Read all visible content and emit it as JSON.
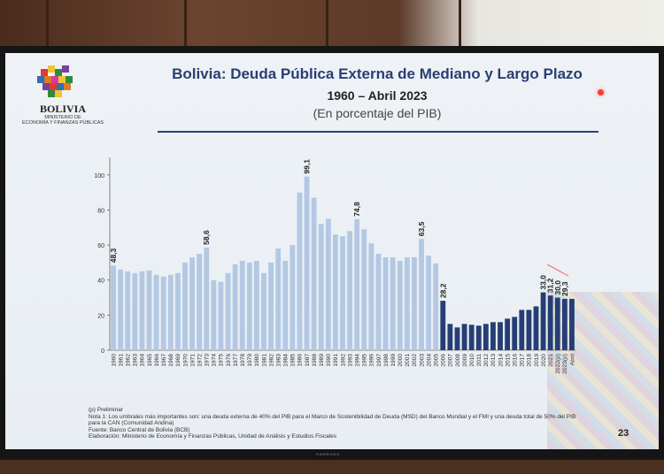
{
  "header": {
    "title": "Bolivia: Deuda Pública Externa de Mediano y Largo Plazo",
    "period": "1960 – Abril 2023",
    "unit": "(En porcentaje del PIB)"
  },
  "logo": {
    "name": "BOLIVIA",
    "ministry_line1": "MINISTERIO DE",
    "ministry_line2": "ECONOMÍA Y FINANZAS PÚBLICAS"
  },
  "notes": {
    "preliminary": "(p) Preliminar",
    "note1": "Nota 1: Los umbrales más importantes son: una deuda externa de 40% del PIB para el Marco de Sostenibilidad de Deuda (MSD) del Banco Mundial y el FMI y una deuda total de 50% del PIB para la CAN (Comunidad Andina)",
    "source": "Fuente: Banco Central de Bolivia (BCB)",
    "prepared": "Elaboración: Ministerio de Economía y Finanzas Públicas, Unidad de Análisis y Estudios Fiscales"
  },
  "page_number": "23",
  "tv_brand": "SAMSUNG",
  "chart_data": {
    "type": "bar",
    "ylim": [
      0,
      110
    ],
    "yticks": [
      0,
      20,
      40,
      60,
      80,
      100
    ],
    "categories": [
      "1960",
      "1961",
      "1962",
      "1963",
      "1964",
      "1965",
      "1966",
      "1967",
      "1968",
      "1969",
      "1970",
      "1971",
      "1972",
      "1973",
      "1974",
      "1975",
      "1976",
      "1977",
      "1978",
      "1979",
      "1980",
      "1981",
      "1982",
      "1983",
      "1984",
      "1985",
      "1986",
      "1987",
      "1988",
      "1989",
      "1990",
      "1991",
      "1992",
      "1993",
      "1994",
      "1995",
      "1996",
      "1997",
      "1998",
      "1999",
      "2000",
      "2001",
      "2002",
      "2003",
      "2004",
      "2005",
      "2006",
      "2007",
      "2008",
      "2009",
      "2010",
      "2011",
      "2012",
      "2013",
      "2014",
      "2015",
      "2016",
      "2017",
      "2018",
      "2019",
      "2020",
      "2021",
      "2022(p)",
      "2023(p)",
      "Abril"
    ],
    "values": [
      48.3,
      46,
      45,
      44,
      45,
      45.5,
      43,
      42,
      43,
      44,
      50,
      53,
      55,
      58.6,
      40,
      39,
      44,
      49,
      51,
      50,
      51,
      44,
      50,
      58,
      51,
      60,
      90,
      99.1,
      87,
      72,
      75,
      66,
      65,
      68,
      74.8,
      69,
      61,
      55,
      53,
      53,
      51,
      53,
      53,
      63.5,
      54,
      49.5,
      28.2,
      15,
      13,
      15,
      14.5,
      14,
      15,
      16,
      16,
      18,
      19,
      23,
      23,
      25,
      33.0,
      31.2,
      30.0,
      29.3,
      29.3
    ],
    "period_colors": {
      "1960-2005": "#b3c8e3",
      "2006-2023": "#263e74"
    },
    "data_labels": [
      {
        "category": "1960",
        "text": "48,3"
      },
      {
        "category": "1973",
        "text": "58,6"
      },
      {
        "category": "1987",
        "text": "99,1"
      },
      {
        "category": "1994",
        "text": "74,8"
      },
      {
        "category": "2003",
        "text": "63,5"
      },
      {
        "category": "2006",
        "text": "28,2"
      },
      {
        "category": "2020",
        "text": "33,0"
      },
      {
        "category": "2021",
        "text": "31,2"
      },
      {
        "category": "2022(p)",
        "text": "30,0"
      },
      {
        "category": "2023(p)",
        "text": "29,3"
      }
    ],
    "grid": false,
    "legend": "none"
  }
}
